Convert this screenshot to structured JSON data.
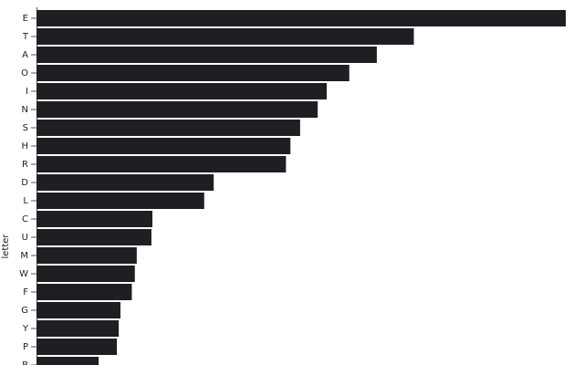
{
  "chart_data": {
    "type": "bar",
    "orientation": "horizontal",
    "ylabel": "letter",
    "categories": [
      "E",
      "T",
      "A",
      "O",
      "I",
      "N",
      "S",
      "H",
      "R",
      "D",
      "L",
      "C",
      "U",
      "M",
      "W",
      "F",
      "G",
      "Y",
      "P",
      "B"
    ],
    "values": [
      0.12702,
      0.09056,
      0.08167,
      0.07507,
      0.06966,
      0.06749,
      0.06327,
      0.06094,
      0.05987,
      0.04253,
      0.04025,
      0.02782,
      0.02758,
      0.02406,
      0.0236,
      0.02288,
      0.02015,
      0.01974,
      0.01929,
      0.01492
    ],
    "color": "#1f1f23",
    "xlim": [
      0,
      0.12702
    ]
  }
}
